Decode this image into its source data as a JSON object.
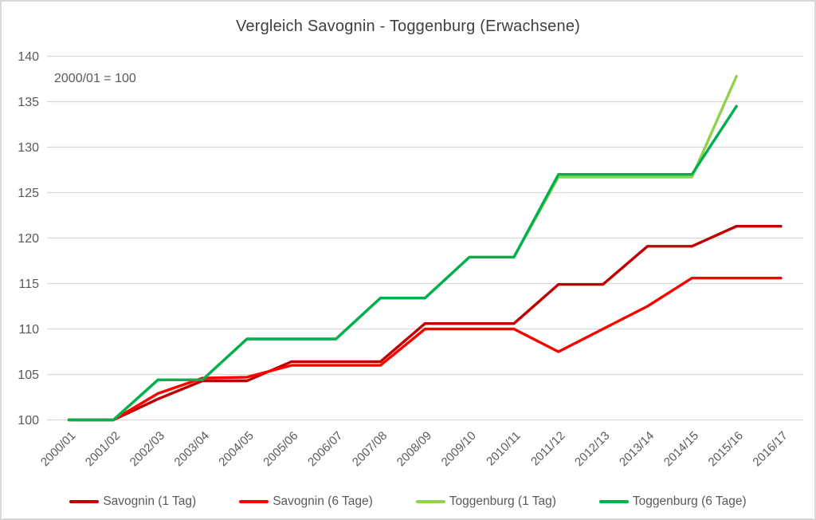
{
  "chart_data": {
    "type": "line",
    "title": "Vergleich Savognin - Toggenburg (Erwachsene)",
    "annotation": "2000/01 = 100",
    "categories": [
      "2000/01",
      "2001/02",
      "2002/03",
      "2003/04",
      "2004/05",
      "2005/06",
      "2006/07",
      "2007/08",
      "2008/09",
      "2009/10",
      "2010/11",
      "2011/12",
      "2012/13",
      "2013/14",
      "2014/15",
      "2015/16",
      "2016/17"
    ],
    "series": [
      {
        "name": "Savognin (1 Tag)",
        "color": "#C00000",
        "values": [
          100,
          100,
          102.3,
          104.3,
          104.3,
          106.4,
          106.4,
          106.4,
          110.6,
          110.6,
          110.6,
          114.9,
          114.9,
          119.1,
          119.1,
          121.3,
          121.3
        ]
      },
      {
        "name": "Savognin (6 Tage)",
        "color": "#FF0000",
        "values": [
          100,
          100,
          102.9,
          104.6,
          104.7,
          106.0,
          106.0,
          106.0,
          110.0,
          110.0,
          110.0,
          107.5,
          110.0,
          112.5,
          115.6,
          115.6,
          115.6
        ]
      },
      {
        "name": "Toggenburg (1 Tag)",
        "color": "#92D050",
        "values": [
          100,
          100,
          104.4,
          104.4,
          108.9,
          108.9,
          108.9,
          113.4,
          113.4,
          117.9,
          117.9,
          126.7,
          126.7,
          126.7,
          126.7,
          137.8,
          null
        ]
      },
      {
        "name": "Toggenburg (6 Tage)",
        "color": "#00B050",
        "values": [
          100,
          100,
          104.4,
          104.4,
          108.9,
          108.9,
          108.9,
          113.4,
          113.4,
          117.9,
          117.9,
          127.0,
          127.0,
          127.0,
          127.0,
          134.5,
          null
        ]
      }
    ],
    "ylim": [
      100,
      140
    ],
    "ystep": 5,
    "grid": true,
    "legend_position": "bottom",
    "grid_color": "#d9d9d9",
    "tick_label_color": "#595959",
    "title_color": "#404040"
  }
}
